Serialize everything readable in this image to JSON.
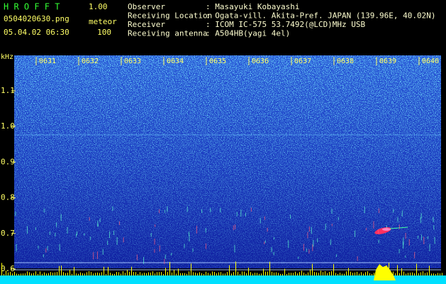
{
  "header": {
    "app_name": "H R O F F T",
    "version": "1.00",
    "file": "0504020630.png",
    "mode": "meteor",
    "datetime": "05.04.02 06:30",
    "level": "100"
  },
  "info": [
    {
      "label": "Observer",
      "value": ": Masayuki Kobayashi"
    },
    {
      "label": "Receiving Location",
      "value": ": Ogata-vill. Akita-Pref. JAPAN (139.96E, 40.02N)"
    },
    {
      "label": "Receiver",
      "value": ": ICOM IC-575 53.7492(@LCD)MHz USB"
    },
    {
      "label": "Receiving antenna",
      "value": ": A504HB(yagi 4el)"
    }
  ],
  "spectrogram": {
    "y_unit": "kHz",
    "y_labels": [
      "1.1",
      "1.0",
      "0.9",
      "0.8",
      "0.7",
      "0.6"
    ],
    "time_labels": [
      "0631",
      "0632",
      "0633",
      "0634",
      "0635",
      "0636",
      "0637",
      "0638",
      "0639",
      "0640"
    ]
  }
}
